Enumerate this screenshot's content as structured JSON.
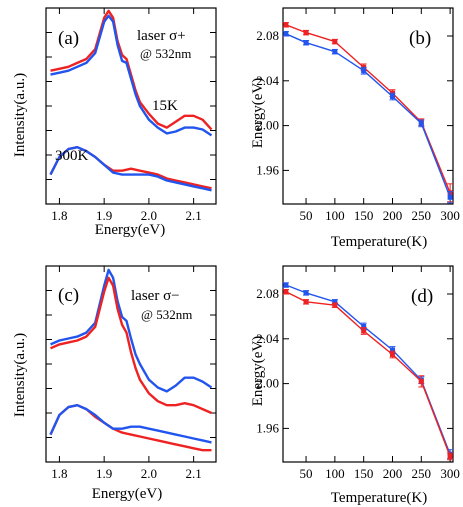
{
  "colors": {
    "red": "#ee2222",
    "blue": "#2255ee",
    "axis": "#000000"
  },
  "chart_data": [
    {
      "type": "line",
      "panel_label": "(a)",
      "xlabel": "Energy(eV)",
      "ylabel": "Intensity(a.u.)",
      "xlim": [
        1.77,
        2.15
      ],
      "ylim": [
        0,
        1
      ],
      "xticks": [
        "1.8",
        "1.9",
        "2.0",
        "2.1"
      ],
      "xtick_values": [
        1.8,
        1.9,
        2.0,
        2.1
      ],
      "annotations": {
        "laser": "laser σ+",
        "wavelength": "@ 532nm",
        "low_temp": "15K",
        "high_temp": "300K"
      },
      "series": [
        {
          "color": "#ee2222",
          "x": [
            1.78,
            1.8,
            1.82,
            1.84,
            1.86,
            1.88,
            1.9,
            1.91,
            1.92,
            1.93,
            1.94,
            1.95,
            1.96,
            1.97,
            1.98,
            2.0,
            2.02,
            2.04,
            2.06,
            2.08,
            2.1,
            2.12,
            2.14
          ],
          "y": [
            0.68,
            0.69,
            0.7,
            0.72,
            0.74,
            0.79,
            0.95,
            0.985,
            0.95,
            0.83,
            0.76,
            0.74,
            0.66,
            0.58,
            0.52,
            0.46,
            0.41,
            0.39,
            0.42,
            0.45,
            0.45,
            0.43,
            0.38
          ]
        },
        {
          "color": "#2255ee",
          "x": [
            1.78,
            1.8,
            1.82,
            1.84,
            1.86,
            1.88,
            1.9,
            1.91,
            1.92,
            1.93,
            1.94,
            1.95,
            1.96,
            1.97,
            1.98,
            2.0,
            2.02,
            2.04,
            2.06,
            2.08,
            2.1,
            2.12,
            2.14
          ],
          "y": [
            0.66,
            0.67,
            0.68,
            0.7,
            0.72,
            0.77,
            0.93,
            0.96,
            0.93,
            0.81,
            0.73,
            0.72,
            0.64,
            0.56,
            0.5,
            0.43,
            0.39,
            0.36,
            0.37,
            0.39,
            0.39,
            0.38,
            0.35
          ]
        },
        {
          "color": "#ee2222",
          "x": [
            1.78,
            1.8,
            1.82,
            1.84,
            1.86,
            1.88,
            1.9,
            1.92,
            1.94,
            1.96,
            1.98,
            2.0,
            2.02,
            2.04,
            2.06,
            2.08,
            2.1,
            2.12,
            2.14
          ],
          "y": [
            0.15,
            0.24,
            0.28,
            0.29,
            0.27,
            0.24,
            0.2,
            0.17,
            0.17,
            0.18,
            0.17,
            0.16,
            0.15,
            0.13,
            0.12,
            0.11,
            0.1,
            0.09,
            0.08
          ]
        },
        {
          "color": "#2255ee",
          "x": [
            1.78,
            1.8,
            1.82,
            1.84,
            1.86,
            1.88,
            1.9,
            1.92,
            1.94,
            1.96,
            1.98,
            2.0,
            2.02,
            2.04,
            2.06,
            2.08,
            2.1,
            2.12,
            2.14
          ],
          "y": [
            0.15,
            0.24,
            0.28,
            0.29,
            0.27,
            0.24,
            0.2,
            0.16,
            0.15,
            0.15,
            0.15,
            0.15,
            0.14,
            0.12,
            0.11,
            0.1,
            0.09,
            0.08,
            0.07
          ]
        }
      ]
    },
    {
      "type": "line",
      "panel_label": "(b)",
      "xlabel": "Temperature(K)",
      "ylabel": "Energy(eV)",
      "xlim": [
        10,
        305
      ],
      "ylim": [
        1.93,
        2.105
      ],
      "xticks": [
        "50",
        "100",
        "150",
        "200",
        "250",
        "300"
      ],
      "xtick_values": [
        50,
        100,
        150,
        200,
        250,
        300
      ],
      "yticks": [
        "1.96",
        "2.00",
        "2.04",
        "2.08"
      ],
      "ytick_values": [
        1.96,
        2.0,
        2.04,
        2.08
      ],
      "series": [
        {
          "color": "#ee2222",
          "x": [
            15,
            50,
            100,
            150,
            200,
            250,
            300
          ],
          "y": [
            2.09,
            2.083,
            2.075,
            2.052,
            2.029,
            2.003,
            1.94
          ],
          "yerr": [
            0.002,
            0.002,
            0.002,
            0.003,
            0.003,
            0.003,
            0.008
          ]
        },
        {
          "color": "#2255ee",
          "x": [
            15,
            50,
            100,
            150,
            200,
            250,
            300
          ],
          "y": [
            2.082,
            2.074,
            2.066,
            2.049,
            2.026,
            2.002,
            1.936
          ],
          "yerr": [
            0.002,
            0.002,
            0.002,
            0.003,
            0.003,
            0.003,
            0.005
          ]
        }
      ]
    },
    {
      "type": "line",
      "panel_label": "(c)",
      "xlabel": "Energy(eV)",
      "ylabel": "Intensity(a.u.)",
      "xlim": [
        1.77,
        2.15
      ],
      "ylim": [
        0,
        1
      ],
      "xticks": [
        "1.8",
        "1.9",
        "2.0",
        "2.1"
      ],
      "xtick_values": [
        1.8,
        1.9,
        2.0,
        2.1
      ],
      "annotations": {
        "laser": "laser σ−",
        "wavelength": "@ 532nm"
      },
      "series": [
        {
          "color": "#2255ee",
          "x": [
            1.78,
            1.8,
            1.82,
            1.84,
            1.86,
            1.88,
            1.9,
            1.91,
            1.92,
            1.93,
            1.94,
            1.95,
            1.96,
            1.97,
            1.98,
            2.0,
            2.02,
            2.04,
            2.06,
            2.08,
            2.1,
            2.12,
            2.14
          ],
          "y": [
            0.6,
            0.62,
            0.63,
            0.64,
            0.66,
            0.71,
            0.9,
            0.98,
            0.94,
            0.82,
            0.74,
            0.72,
            0.63,
            0.55,
            0.5,
            0.42,
            0.38,
            0.36,
            0.39,
            0.43,
            0.43,
            0.41,
            0.38
          ]
        },
        {
          "color": "#ee2222",
          "x": [
            1.78,
            1.8,
            1.82,
            1.84,
            1.86,
            1.88,
            1.9,
            1.91,
            1.92,
            1.93,
            1.94,
            1.95,
            1.96,
            1.97,
            1.98,
            2.0,
            2.02,
            2.04,
            2.06,
            2.08,
            2.1,
            2.12,
            2.14
          ],
          "y": [
            0.58,
            0.6,
            0.61,
            0.62,
            0.64,
            0.69,
            0.87,
            0.94,
            0.9,
            0.78,
            0.7,
            0.66,
            0.56,
            0.48,
            0.42,
            0.35,
            0.31,
            0.29,
            0.29,
            0.3,
            0.29,
            0.27,
            0.25
          ]
        },
        {
          "color": "#ee2222",
          "x": [
            1.78,
            1.8,
            1.82,
            1.84,
            1.86,
            1.88,
            1.9,
            1.92,
            1.94,
            1.96,
            1.98,
            2.0,
            2.02,
            2.04,
            2.06,
            2.08,
            2.1,
            2.12,
            2.14
          ],
          "y": [
            0.14,
            0.24,
            0.28,
            0.29,
            0.27,
            0.23,
            0.2,
            0.17,
            0.15,
            0.14,
            0.13,
            0.12,
            0.11,
            0.1,
            0.09,
            0.08,
            0.07,
            0.06,
            0.06
          ]
        },
        {
          "color": "#2255ee",
          "x": [
            1.78,
            1.8,
            1.82,
            1.84,
            1.86,
            1.88,
            1.9,
            1.92,
            1.94,
            1.96,
            1.98,
            2.0,
            2.02,
            2.04,
            2.06,
            2.08,
            2.1,
            2.12,
            2.14
          ],
          "y": [
            0.14,
            0.24,
            0.28,
            0.29,
            0.27,
            0.24,
            0.2,
            0.17,
            0.17,
            0.18,
            0.18,
            0.17,
            0.16,
            0.15,
            0.14,
            0.13,
            0.12,
            0.11,
            0.1
          ]
        }
      ]
    },
    {
      "type": "line",
      "panel_label": "(d)",
      "xlabel": "Temperature(K)",
      "ylabel": "Energy(eV)",
      "xlim": [
        10,
        305
      ],
      "ylim": [
        1.93,
        2.105
      ],
      "xticks": [
        "50",
        "100",
        "150",
        "200",
        "250",
        "300"
      ],
      "xtick_values": [
        50,
        100,
        150,
        200,
        250,
        300
      ],
      "yticks": [
        "1.96",
        "2.00",
        "2.04",
        "2.08"
      ],
      "ytick_values": [
        1.96,
        2.0,
        2.04,
        2.08
      ],
      "series": [
        {
          "color": "#2255ee",
          "x": [
            15,
            50,
            100,
            150,
            200,
            250,
            300
          ],
          "y": [
            2.088,
            2.081,
            2.073,
            2.051,
            2.03,
            2.003,
            1.937
          ],
          "yerr": [
            0.002,
            0.002,
            0.002,
            0.003,
            0.003,
            0.003,
            0.004
          ]
        },
        {
          "color": "#ee2222",
          "x": [
            15,
            50,
            100,
            150,
            200,
            250,
            300
          ],
          "y": [
            2.082,
            2.073,
            2.07,
            2.047,
            2.026,
            2.002,
            1.935
          ],
          "yerr": [
            0.002,
            0.002,
            0.002,
            0.003,
            0.003,
            0.005,
            0.003
          ]
        }
      ]
    }
  ]
}
